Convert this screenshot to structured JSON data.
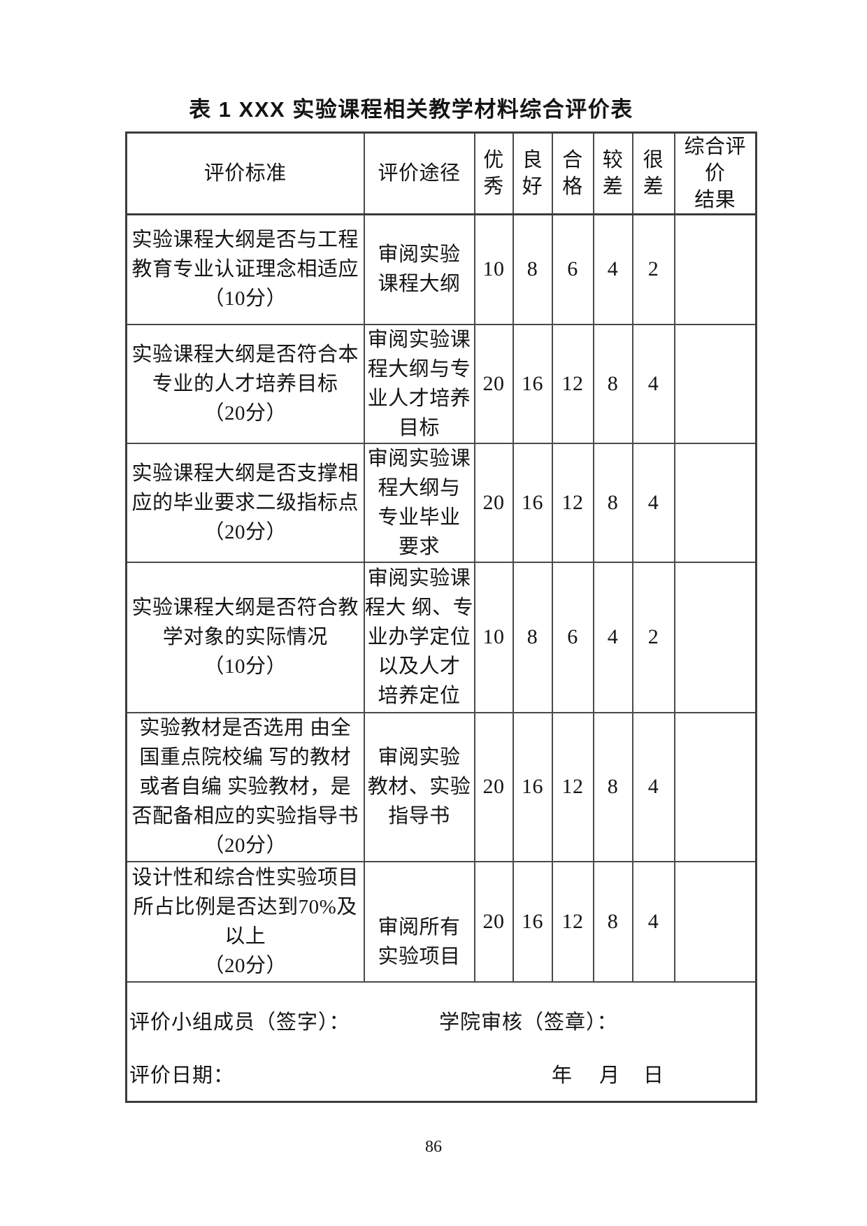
{
  "page": {
    "title": "表 1 XXX 实验课程相关教学材料综合评价表",
    "page_number": "86"
  },
  "table": {
    "headers": {
      "criteria": "评价标准",
      "approach": "评价途径",
      "grades": [
        "优\n秀",
        "良\n好",
        "合\n格",
        "较\n差",
        "很\n差"
      ],
      "result": "综合评价\n结果"
    },
    "rows": [
      {
        "criteria": "实验课程大纲是否与工程\n教育专业认证理念相适应\n（10分）",
        "approach": "审阅实验\n课程大纲",
        "scores": [
          "10",
          "8",
          "6",
          "4",
          "2"
        ],
        "result": ""
      },
      {
        "criteria": "实验课程大纲是否符合本\n专业的人才培养目标\n（20分）",
        "approach": "审阅实验课\n程大纲与专\n业人才培养\n目标",
        "scores": [
          "20",
          "16",
          "12",
          "8",
          "4"
        ],
        "result": ""
      },
      {
        "criteria": "实验课程大纲是否支撑相\n应的毕业要求二级指标点\n（20分）",
        "approach": "审阅实验课\n程大纲与\n专业毕业\n要求",
        "scores": [
          "20",
          "16",
          "12",
          "8",
          "4"
        ],
        "result": ""
      },
      {
        "criteria": "实验课程大纲是否符合教\n学对象的实际情况\n（10分）",
        "approach": "审阅实验课\n程大 纲、专\n业办学定位\n以及人才\n培养定位",
        "scores": [
          "10",
          "8",
          "6",
          "4",
          "2"
        ],
        "result": ""
      },
      {
        "criteria": "实验教材是否选用 由全\n国重点院校编 写的教材\n或者自编 实验教材，是\n否配备相应的实验指导书\n（20分）",
        "approach": "审阅实验\n教材、实验\n指导书",
        "scores": [
          "20",
          "16",
          "12",
          "8",
          "4"
        ],
        "result": ""
      },
      {
        "criteria": "设计性和综合性实验项目\n所占比例是否达到70%及\n以上\n（20分）",
        "approach": "审阅所有\n实验项目",
        "scores": [
          "20",
          "16",
          "12",
          "8",
          "4"
        ],
        "result": ""
      }
    ],
    "footer": {
      "sign_label": "评价小组成员（签字）：",
      "review_label": "学院审核（签章）：",
      "date_label": "评价日期：",
      "year_label": "年",
      "month_label": "月",
      "day_label": "日"
    }
  }
}
